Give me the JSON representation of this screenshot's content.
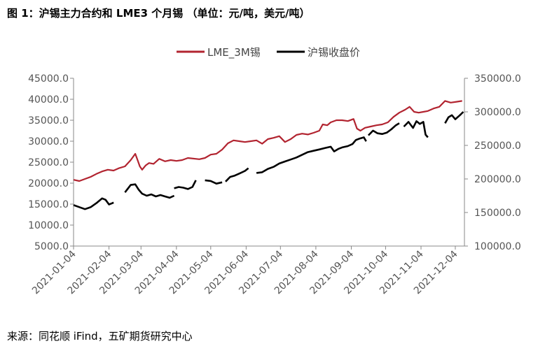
{
  "title": "图 1：沪锡主力合约和 LME3 个月锡 （单位：元/吨，美元/吨）",
  "source": "来源：同花顺 iFind，五矿期货研究中心",
  "colors": {
    "lme": "#b22430",
    "shfe": "#000000",
    "axis": "#888888"
  },
  "chart_data": {
    "type": "line",
    "legend_position": "top-center",
    "grid": false,
    "x_ticks": [
      "2021-01-04",
      "2021-02-04",
      "2021-03-04",
      "2021-04-04",
      "2021-05-04",
      "2021-06-04",
      "2021-07-04",
      "2021-08-04",
      "2021-09-04",
      "2021-10-04",
      "2021-11-04",
      "2021-12-04"
    ],
    "x_range": [
      0,
      342
    ],
    "y_left": {
      "min": 5000,
      "max": 45000,
      "ticks": [
        "5000.0",
        "10000.0",
        "15000.0",
        "20000.0",
        "25000.0",
        "30000.0",
        "35000.0",
        "40000.0",
        "45000.0"
      ]
    },
    "y_right": {
      "min": 100000,
      "max": 350000,
      "ticks": [
        "100000.0",
        "150000.0",
        "200000.0",
        "250000.0",
        "300000.0",
        "350000.0"
      ]
    },
    "series": [
      {
        "name": "LME_3M锡",
        "axis": "left",
        "points": [
          [
            0,
            20800
          ],
          [
            5,
            20500
          ],
          [
            10,
            21000
          ],
          [
            15,
            21500
          ],
          [
            20,
            22200
          ],
          [
            25,
            22800
          ],
          [
            30,
            23200
          ],
          [
            35,
            23000
          ],
          [
            40,
            23600
          ],
          [
            45,
            24000
          ],
          [
            50,
            25500
          ],
          [
            54,
            27000
          ],
          [
            56,
            25500
          ],
          [
            58,
            24000
          ],
          [
            60,
            23200
          ],
          [
            63,
            24200
          ],
          [
            66,
            24800
          ],
          [
            70,
            24600
          ],
          [
            75,
            25800
          ],
          [
            80,
            25200
          ],
          [
            85,
            25500
          ],
          [
            90,
            25300
          ],
          [
            95,
            25500
          ],
          [
            100,
            26000
          ],
          [
            110,
            25700
          ],
          [
            115,
            26000
          ],
          [
            120,
            26800
          ],
          [
            125,
            27000
          ],
          [
            130,
            28000
          ],
          [
            135,
            29500
          ],
          [
            140,
            30200
          ],
          [
            145,
            30000
          ],
          [
            150,
            29800
          ],
          [
            155,
            30000
          ],
          [
            160,
            30200
          ],
          [
            165,
            29400
          ],
          [
            170,
            30500
          ],
          [
            175,
            30800
          ],
          [
            180,
            31200
          ],
          [
            185,
            29800
          ],
          [
            190,
            30500
          ],
          [
            195,
            31500
          ],
          [
            200,
            31800
          ],
          [
            205,
            31600
          ],
          [
            210,
            32000
          ],
          [
            215,
            32500
          ],
          [
            218,
            34000
          ],
          [
            222,
            33800
          ],
          [
            225,
            34500
          ],
          [
            230,
            35000
          ],
          [
            235,
            35000
          ],
          [
            240,
            34800
          ],
          [
            245,
            35300
          ],
          [
            248,
            33000
          ],
          [
            251,
            32500
          ],
          [
            255,
            33200
          ],
          [
            260,
            33500
          ],
          [
            265,
            33800
          ],
          [
            270,
            34000
          ],
          [
            275,
            34500
          ],
          [
            280,
            35800
          ],
          [
            285,
            36800
          ],
          [
            290,
            37500
          ],
          [
            294,
            38200
          ],
          [
            298,
            37000
          ],
          [
            302,
            36800
          ],
          [
            306,
            37000
          ],
          [
            310,
            37200
          ],
          [
            315,
            37800
          ],
          [
            320,
            38200
          ],
          [
            325,
            39600
          ],
          [
            330,
            39200
          ],
          [
            335,
            39400
          ],
          [
            340,
            39600
          ]
        ]
      },
      {
        "name": "沪锡收盘价",
        "axis": "right",
        "segments": [
          [
            [
              0,
              161000
            ],
            [
              5,
              158000
            ],
            [
              10,
              155000
            ],
            [
              15,
              158000
            ],
            [
              20,
              164000
            ],
            [
              25,
              171000
            ],
            [
              28,
              169000
            ],
            [
              31,
              162000
            ],
            [
              34,
              164000
            ],
            [
              35,
              165000
            ]
          ],
          [
            [
              45,
              180000
            ],
            [
              50,
              191000
            ],
            [
              54,
              192000
            ],
            [
              57,
              184000
            ],
            [
              60,
              178000
            ],
            [
              64,
              175000
            ],
            [
              68,
              177000
            ],
            [
              72,
              174000
            ],
            [
              76,
              176000
            ],
            [
              80,
              174000
            ],
            [
              84,
              172000
            ],
            [
              88,
              175000
            ]
          ],
          [
            [
              88,
              186000
            ],
            [
              92,
              188000
            ],
            [
              96,
              187000
            ],
            [
              100,
              185000
            ],
            [
              104,
              188000
            ],
            [
              107,
              198000
            ]
          ],
          [
            [
              115,
              198000
            ],
            [
              120,
              197000
            ],
            [
              125,
              193000
            ],
            [
              130,
              195000
            ]
          ],
          [
            [
              133,
              196000
            ],
            [
              137,
              203000
            ],
            [
              141,
              205000
            ],
            [
              145,
              208000
            ],
            [
              150,
              212000
            ],
            [
              153,
              216000
            ]
          ],
          [
            [
              160,
              209000
            ],
            [
              165,
              210000
            ],
            [
              170,
              215000
            ],
            [
              175,
              218000
            ],
            [
              180,
              223000
            ],
            [
              185,
              226000
            ],
            [
              190,
              229000
            ],
            [
              195,
              232000
            ],
            [
              200,
              236000
            ],
            [
              205,
              240000
            ],
            [
              210,
              242000
            ],
            [
              215,
              244000
            ],
            [
              220,
              246000
            ],
            [
              225,
              248000
            ],
            [
              228,
              241000
            ],
            [
              232,
              245000
            ],
            [
              235,
              247000
            ],
            [
              240,
              249000
            ],
            [
              244,
              252000
            ],
            [
              247,
              258000
            ],
            [
              250,
              260000
            ],
            [
              254,
              262000
            ],
            [
              256,
              256000
            ]
          ],
          [
            [
              258,
              265000
            ],
            [
              262,
              272000
            ],
            [
              266,
              268000
            ],
            [
              270,
              267000
            ],
            [
              274,
              269000
            ],
            [
              278,
              274000
            ],
            [
              282,
              280000
            ],
            [
              285,
              283000
            ]
          ],
          [
            [
              289,
              278000
            ],
            [
              293,
              285000
            ],
            [
              297,
              276000
            ],
            [
              300,
              286000
            ],
            [
              303,
              282000
            ],
            [
              306,
              285000
            ],
            [
              308,
              266000
            ],
            [
              310,
              262000
            ]
          ],
          [
            [
              325,
              283000
            ],
            [
              328,
              292000
            ],
            [
              331,
              295000
            ],
            [
              334,
              289000
            ],
            [
              338,
              295000
            ],
            [
              341,
              300000
            ]
          ]
        ]
      }
    ]
  }
}
